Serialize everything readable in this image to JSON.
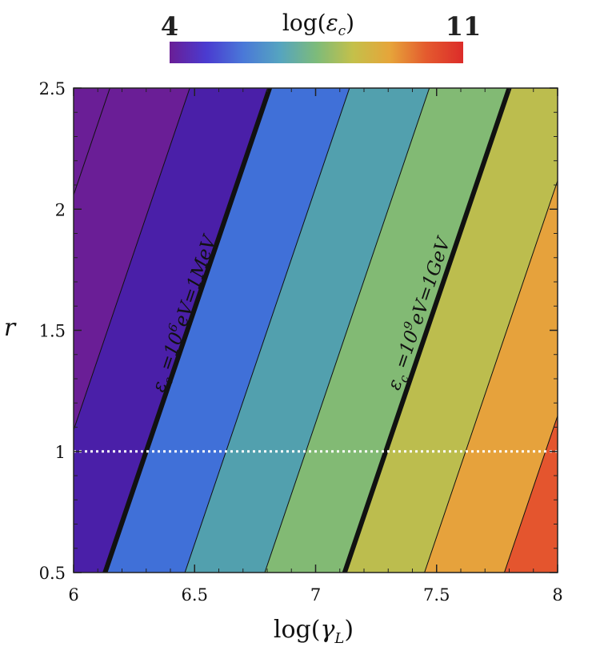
{
  "chart_data": {
    "type": "contour",
    "x": {
      "label": "log(γ_L)",
      "label_main": "log",
      "label_symbol": "γ",
      "label_sub": "L",
      "range": [
        6,
        8
      ],
      "ticks": [
        6,
        6.5,
        7,
        7.5,
        8
      ],
      "tick_labels": [
        "6",
        "6.5",
        "7",
        "7.5",
        "8"
      ]
    },
    "y": {
      "label": "r",
      "range": [
        0.5,
        2.5
      ],
      "ticks": [
        0.5,
        1,
        1.5,
        2,
        2.5
      ],
      "tick_labels": [
        "0.5",
        "1",
        "1.5",
        "2",
        "2.5"
      ]
    },
    "colorbar": {
      "label": "log(ε_c)",
      "label_main": "log",
      "label_symbol": "ε",
      "label_sub": "c",
      "min": 4,
      "max": 11,
      "min_label": "4",
      "max_label": "11",
      "colors": [
        "#6a1e96",
        "#4a3bd0",
        "#4a78d8",
        "#55a4c0",
        "#7dbb7a",
        "#c4c04a",
        "#e6a53a",
        "#e45a2e",
        "#dc2c2a"
      ]
    },
    "contour_lines_r1": [
      {
        "x_at_r1": 6.3,
        "level": 6,
        "emphasis": true
      },
      {
        "x_at_r1": 6.65,
        "level": 6.5,
        "emphasis": false
      },
      {
        "x_at_r1": 6.98,
        "level": 7,
        "emphasis": false
      },
      {
        "x_at_r1": 7.31,
        "level": 7.5,
        "emphasis": false
      },
      {
        "x_at_r1": 7.64,
        "level": 8,
        "emphasis": false
      },
      {
        "x_at_r1": 7.97,
        "level": 8.5,
        "emphasis": false
      }
    ],
    "band_colors": [
      "#6a1e96",
      "#4a1fa8",
      "#4070d8",
      "#52a0ae",
      "#82ba74",
      "#bcbd4e",
      "#e6a23c",
      "#e4552e",
      "#d62828"
    ],
    "contour_spacing_x": 0.33,
    "slope_dx_per_dr": 0.34,
    "hline": {
      "y": 1,
      "style": "dotted",
      "color": "#ffffff"
    },
    "annotations": [
      {
        "text_main": "ε",
        "text_sub": "c",
        "text_rest": " =10",
        "text_sup": "6",
        "text_end": "eV=1MeV",
        "anchor_x": 6.48,
        "anchor_r": 1.56
      },
      {
        "text_main": "ε",
        "text_sub": "c",
        "text_rest": " =10",
        "text_sup": "9",
        "text_end": "eV=1GeV",
        "anchor_x": 7.45,
        "anchor_r": 1.56
      }
    ]
  }
}
